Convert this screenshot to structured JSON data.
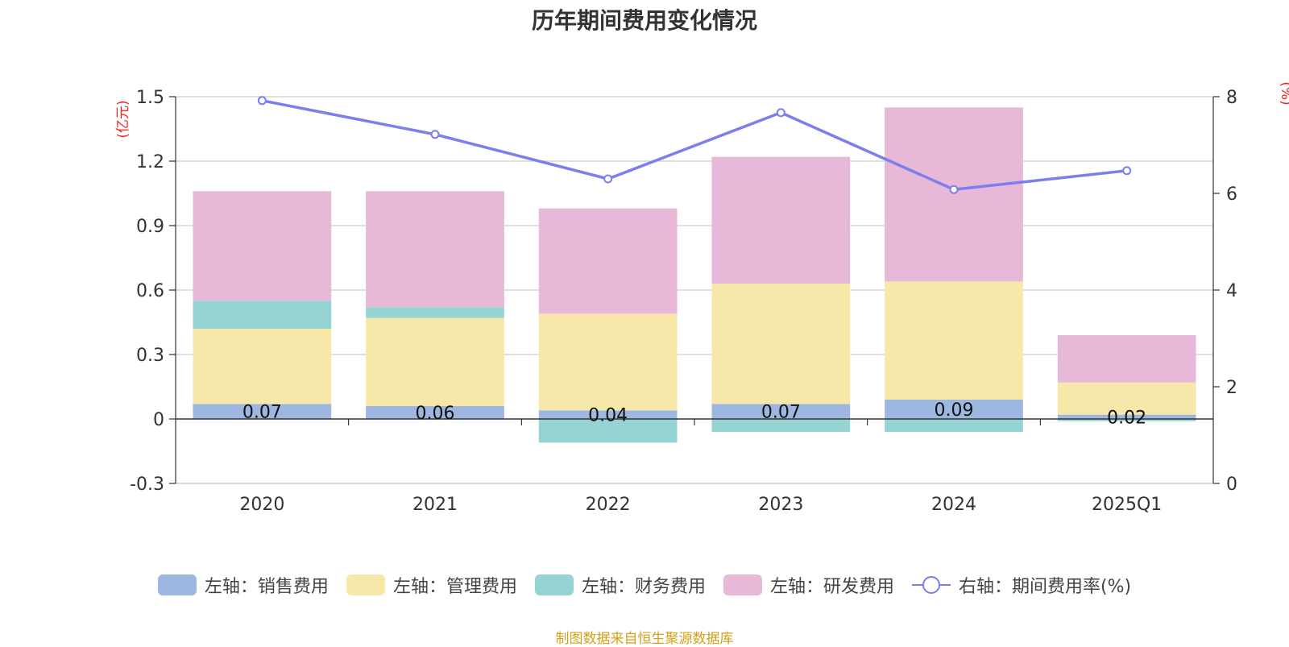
{
  "chart_data": {
    "type": "bar",
    "title": "历年期间费用变化情况",
    "categories": [
      "2020",
      "2021",
      "2022",
      "2023",
      "2024",
      "2025Q1"
    ],
    "stacked": true,
    "left_axis": {
      "label": "(亿元)",
      "ylim": [
        -0.3,
        1.5
      ],
      "ticks": [
        -0.3,
        0,
        0.3,
        0.6,
        0.9,
        1.2,
        1.5
      ],
      "tick_labels": [
        "-0.3",
        "0",
        "0.3",
        "0.6",
        "0.9",
        "1.2",
        "1.5"
      ]
    },
    "right_axis": {
      "label": "(%)",
      "ylim": [
        0,
        8
      ],
      "ticks": [
        0,
        2,
        4,
        6,
        8
      ],
      "tick_labels": [
        "0",
        "2",
        "4",
        "6",
        "8"
      ]
    },
    "series": [
      {
        "name": "左轴：销售费用",
        "type": "bar",
        "axis": "left",
        "color": "#9db7e0",
        "values": [
          0.07,
          0.06,
          0.04,
          0.07,
          0.09,
          0.02
        ],
        "data_labels": [
          "0.07",
          "0.06",
          "0.04",
          "0.07",
          "0.09",
          "0.02"
        ]
      },
      {
        "name": "左轴：管理费用",
        "type": "bar",
        "axis": "left",
        "color": "#f7e7a8",
        "values": [
          0.35,
          0.41,
          0.45,
          0.56,
          0.55,
          0.15
        ]
      },
      {
        "name": "左轴：财务费用",
        "type": "bar",
        "axis": "left",
        "color": "#96d4d4",
        "values": [
          0.13,
          0.05,
          -0.11,
          -0.06,
          -0.06,
          -0.01
        ]
      },
      {
        "name": "左轴：研发费用",
        "type": "bar",
        "axis": "left",
        "color": "#e8b8d8",
        "values": [
          0.51,
          0.54,
          0.49,
          0.59,
          0.81,
          0.22
        ]
      },
      {
        "name": "右轴：期间费用率(%)",
        "type": "line",
        "axis": "right",
        "color": "#7b7fee",
        "values": [
          7.92,
          7.22,
          6.3,
          7.67,
          6.08,
          6.47
        ]
      }
    ],
    "legend_position": "bottom",
    "grid": true
  },
  "source_note": "制图数据来自恒生聚源数据库"
}
